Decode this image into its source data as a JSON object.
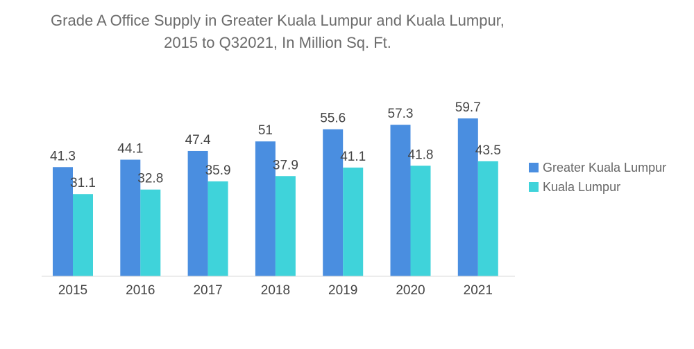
{
  "chart_data": {
    "type": "bar",
    "title": "Grade A Office Supply in Greater Kuala Lumpur and Kuala Lumpur, 2015 to Q32021, In Million Sq. Ft.",
    "categories": [
      "2015",
      "2016",
      "2017",
      "2018",
      "2019",
      "2020",
      "2021"
    ],
    "series": [
      {
        "name": "Greater Kuala Lumpur",
        "color": "#4a8ee0",
        "values": [
          41.3,
          44.1,
          47.4,
          51,
          55.6,
          57.3,
          59.7
        ],
        "labels": [
          "41.3",
          "44.1",
          "47.4",
          "51",
          "55.6",
          "57.3",
          "59.7"
        ]
      },
      {
        "name": "Kuala Lumpur",
        "color": "#3fd3da",
        "values": [
          31.1,
          32.8,
          35.9,
          37.9,
          41.1,
          41.8,
          43.5
        ],
        "labels": [
          "31.1",
          "32.8",
          "35.9",
          "37.9",
          "41.1",
          "41.8",
          "43.5"
        ]
      }
    ],
    "xlabel": "",
    "ylabel": "",
    "ylim": [
      0,
      59.7
    ],
    "grid": false,
    "legend_position": "right"
  }
}
